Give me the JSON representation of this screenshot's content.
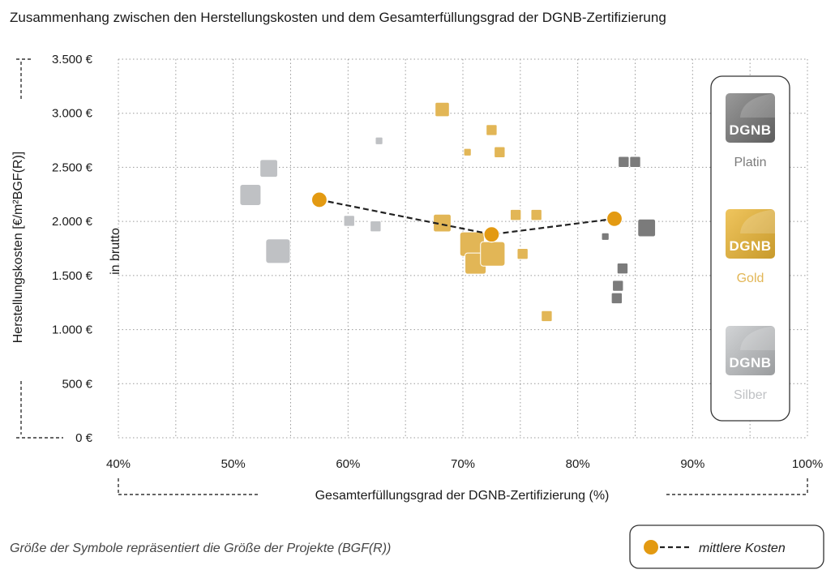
{
  "colors": {
    "platin": "#7b7b7b",
    "gold": "#e2b656",
    "silber": "#bfc1c4",
    "mean": "#e39a12"
  },
  "chart_data": {
    "type": "scatter",
    "title": "Zusammenhang zwischen den Herstellungskosten und dem Gesamterfüllungsgrad der DGNB-Zertifizierung",
    "xlabel": "Gesamterfüllungsgrad der DGNB-Zertifizierung (%)",
    "ylabel": "Herstellungskosten [€/m²BGF(R)]",
    "ylabel2": "in brutto",
    "xlim": [
      40,
      100
    ],
    "ylim": [
      0,
      3500
    ],
    "x_ticks": [
      40,
      50,
      60,
      70,
      80,
      90,
      100
    ],
    "x_tick_labels": [
      "40%",
      "50%",
      "60%",
      "70%",
      "80%",
      "90%",
      "100%"
    ],
    "y_ticks": [
      0,
      500,
      1000,
      1500,
      2000,
      2500,
      3000,
      3500
    ],
    "y_tick_labels": [
      "0 €",
      "500 €",
      "1.000 €",
      "1.500 €",
      "2.000 €",
      "2.500 €",
      "3.000 €",
      "3.500 €"
    ],
    "grid": true,
    "legend_position": "right",
    "series": [
      {
        "name": "Platin",
        "key": "platin",
        "points": [
          {
            "x": 84.0,
            "y": 2550,
            "size": 2
          },
          {
            "x": 85.0,
            "y": 2550,
            "size": 2
          },
          {
            "x": 86.0,
            "y": 1940,
            "size": 4
          },
          {
            "x": 82.4,
            "y": 1860,
            "size": 1
          },
          {
            "x": 83.9,
            "y": 1565,
            "size": 2
          },
          {
            "x": 83.5,
            "y": 1405,
            "size": 2
          },
          {
            "x": 83.4,
            "y": 1290,
            "size": 2
          }
        ]
      },
      {
        "name": "Gold",
        "key": "gold",
        "points": [
          {
            "x": 68.2,
            "y": 3035,
            "size": 3
          },
          {
            "x": 72.5,
            "y": 2845,
            "size": 2
          },
          {
            "x": 70.4,
            "y": 2640,
            "size": 1
          },
          {
            "x": 73.2,
            "y": 2640,
            "size": 2
          },
          {
            "x": 74.6,
            "y": 2060,
            "size": 2
          },
          {
            "x": 76.4,
            "y": 2060,
            "size": 2
          },
          {
            "x": 68.2,
            "y": 1985,
            "size": 4
          },
          {
            "x": 70.8,
            "y": 1790,
            "size": 6
          },
          {
            "x": 71.1,
            "y": 1610,
            "size": 5
          },
          {
            "x": 72.6,
            "y": 1700,
            "size": 6
          },
          {
            "x": 75.2,
            "y": 1700,
            "size": 2
          },
          {
            "x": 77.3,
            "y": 1125,
            "size": 2
          }
        ]
      },
      {
        "name": "Silber",
        "key": "silber",
        "points": [
          {
            "x": 62.7,
            "y": 2745,
            "size": 1
          },
          {
            "x": 53.1,
            "y": 2490,
            "size": 4
          },
          {
            "x": 51.5,
            "y": 2245,
            "size": 5
          },
          {
            "x": 60.1,
            "y": 2005,
            "size": 2
          },
          {
            "x": 62.4,
            "y": 1955,
            "size": 2
          },
          {
            "x": 53.9,
            "y": 1725,
            "size": 6
          }
        ]
      }
    ],
    "mean_series": {
      "name": "mittlere Kosten",
      "points": [
        {
          "x": 57.5,
          "y": 2200
        },
        {
          "x": 72.5,
          "y": 1880
        },
        {
          "x": 83.2,
          "y": 2025
        }
      ]
    },
    "legend_badge_text": "DGNB",
    "note": "Größe der Symbole repräsentiert die Größe der Projekte (BGF(R))"
  }
}
